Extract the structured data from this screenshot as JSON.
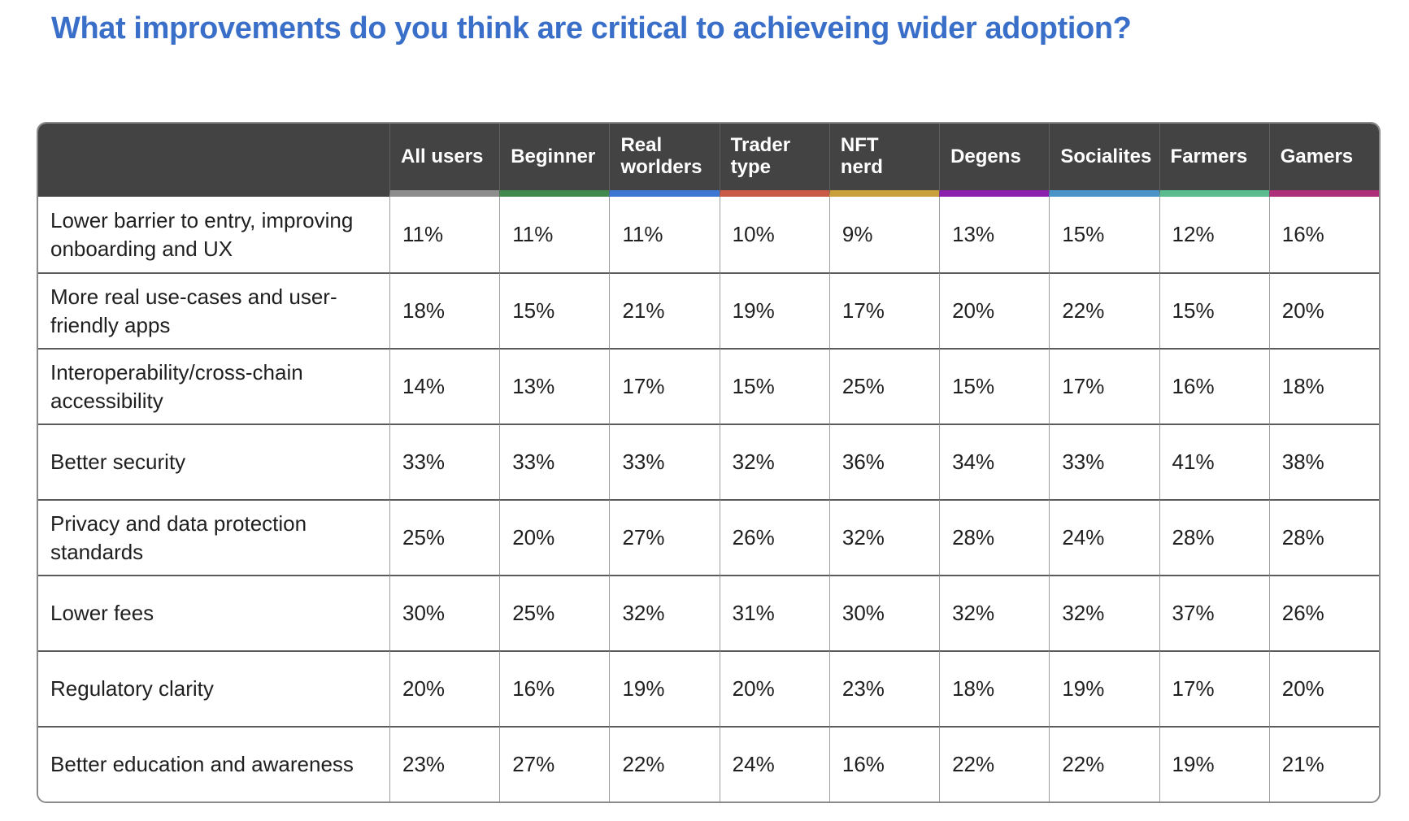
{
  "title": "What improvements do you think are critical to achieveing wider adoption?",
  "colors": {
    "title_text": "#3a6fc9",
    "header_bg": "#434343",
    "header_text": "#ffffff",
    "grid_horizontal": "#5b5b5b",
    "grid_vertical": "#9e9e9e",
    "outer_border": "#8a8a8a",
    "cell_text": "#1f1f1f"
  },
  "table": {
    "columns": [
      {
        "label": "All users",
        "color": "#8d8d8d"
      },
      {
        "label": "Beginner",
        "color": "#42894e"
      },
      {
        "label": "Real\nworlders",
        "color": "#3d76d3"
      },
      {
        "label": "Trader\ntype",
        "color": "#c95a45"
      },
      {
        "label": "NFT\nnerd",
        "color": "#c9a03c"
      },
      {
        "label": "Degens",
        "color": "#8b21ae"
      },
      {
        "label": "Socialites",
        "color": "#4a94c8"
      },
      {
        "label": "Farmers",
        "color": "#5abc8e"
      },
      {
        "label": "Gamers",
        "color": "#ae3079"
      }
    ],
    "rows": [
      {
        "label": "Lower barrier to entry, improving\nonboarding and UX",
        "values": [
          "11%",
          "11%",
          "11%",
          "10%",
          "9%",
          "13%",
          "15%",
          "12%",
          "16%"
        ]
      },
      {
        "label": "More real use-cases and user-\nfriendly apps",
        "values": [
          "18%",
          "15%",
          "21%",
          "19%",
          "17%",
          "20%",
          "22%",
          "15%",
          "20%"
        ]
      },
      {
        "label": "Interoperability/cross-chain\naccessibility",
        "values": [
          "14%",
          "13%",
          "17%",
          "15%",
          "25%",
          "15%",
          "17%",
          "16%",
          "18%"
        ]
      },
      {
        "label": "Better security",
        "values": [
          "33%",
          "33%",
          "33%",
          "32%",
          "36%",
          "34%",
          "33%",
          "41%",
          "38%"
        ]
      },
      {
        "label": "Privacy and data protection\nstandards",
        "values": [
          "25%",
          "20%",
          "27%",
          "26%",
          "32%",
          "28%",
          "24%",
          "28%",
          "28%"
        ]
      },
      {
        "label": "Lower fees",
        "values": [
          "30%",
          "25%",
          "32%",
          "31%",
          "30%",
          "32%",
          "32%",
          "37%",
          "26%"
        ]
      },
      {
        "label": "Regulatory clarity",
        "values": [
          "20%",
          "16%",
          "19%",
          "20%",
          "23%",
          "18%",
          "19%",
          "17%",
          "20%"
        ]
      },
      {
        "label": "Better education and awareness",
        "values": [
          "23%",
          "27%",
          "22%",
          "24%",
          "16%",
          "22%",
          "22%",
          "19%",
          "21%"
        ]
      }
    ]
  },
  "chart_data": {
    "type": "table",
    "title": "What improvements do you think are critical to achieveing wider adoption?",
    "unit": "percent",
    "categories": [
      "All users",
      "Beginner",
      "Real worlders",
      "Trader type",
      "NFT nerd",
      "Degens",
      "Socialites",
      "Farmers",
      "Gamers"
    ],
    "series": [
      {
        "name": "Lower barrier to entry, improving onboarding and UX",
        "values": [
          11,
          11,
          11,
          10,
          9,
          13,
          15,
          12,
          16
        ]
      },
      {
        "name": "More real use-cases and user-friendly apps",
        "values": [
          18,
          15,
          21,
          19,
          17,
          20,
          22,
          15,
          20
        ]
      },
      {
        "name": "Interoperability/cross-chain accessibility",
        "values": [
          14,
          13,
          17,
          15,
          25,
          15,
          17,
          16,
          18
        ]
      },
      {
        "name": "Better security",
        "values": [
          33,
          33,
          33,
          32,
          36,
          34,
          33,
          41,
          38
        ]
      },
      {
        "name": "Privacy and data protection standards",
        "values": [
          25,
          20,
          27,
          26,
          32,
          28,
          24,
          28,
          28
        ]
      },
      {
        "name": "Lower fees",
        "values": [
          30,
          25,
          32,
          31,
          30,
          32,
          32,
          37,
          26
        ]
      },
      {
        "name": "Regulatory clarity",
        "values": [
          20,
          16,
          19,
          20,
          23,
          18,
          19,
          17,
          20
        ]
      },
      {
        "name": "Better education and awareness",
        "values": [
          23,
          27,
          22,
          24,
          16,
          22,
          22,
          19,
          21
        ]
      }
    ],
    "column_accent_colors": [
      "#8d8d8d",
      "#42894e",
      "#3d76d3",
      "#c95a45",
      "#c9a03c",
      "#8b21ae",
      "#4a94c8",
      "#5abc8e",
      "#ae3079"
    ]
  }
}
